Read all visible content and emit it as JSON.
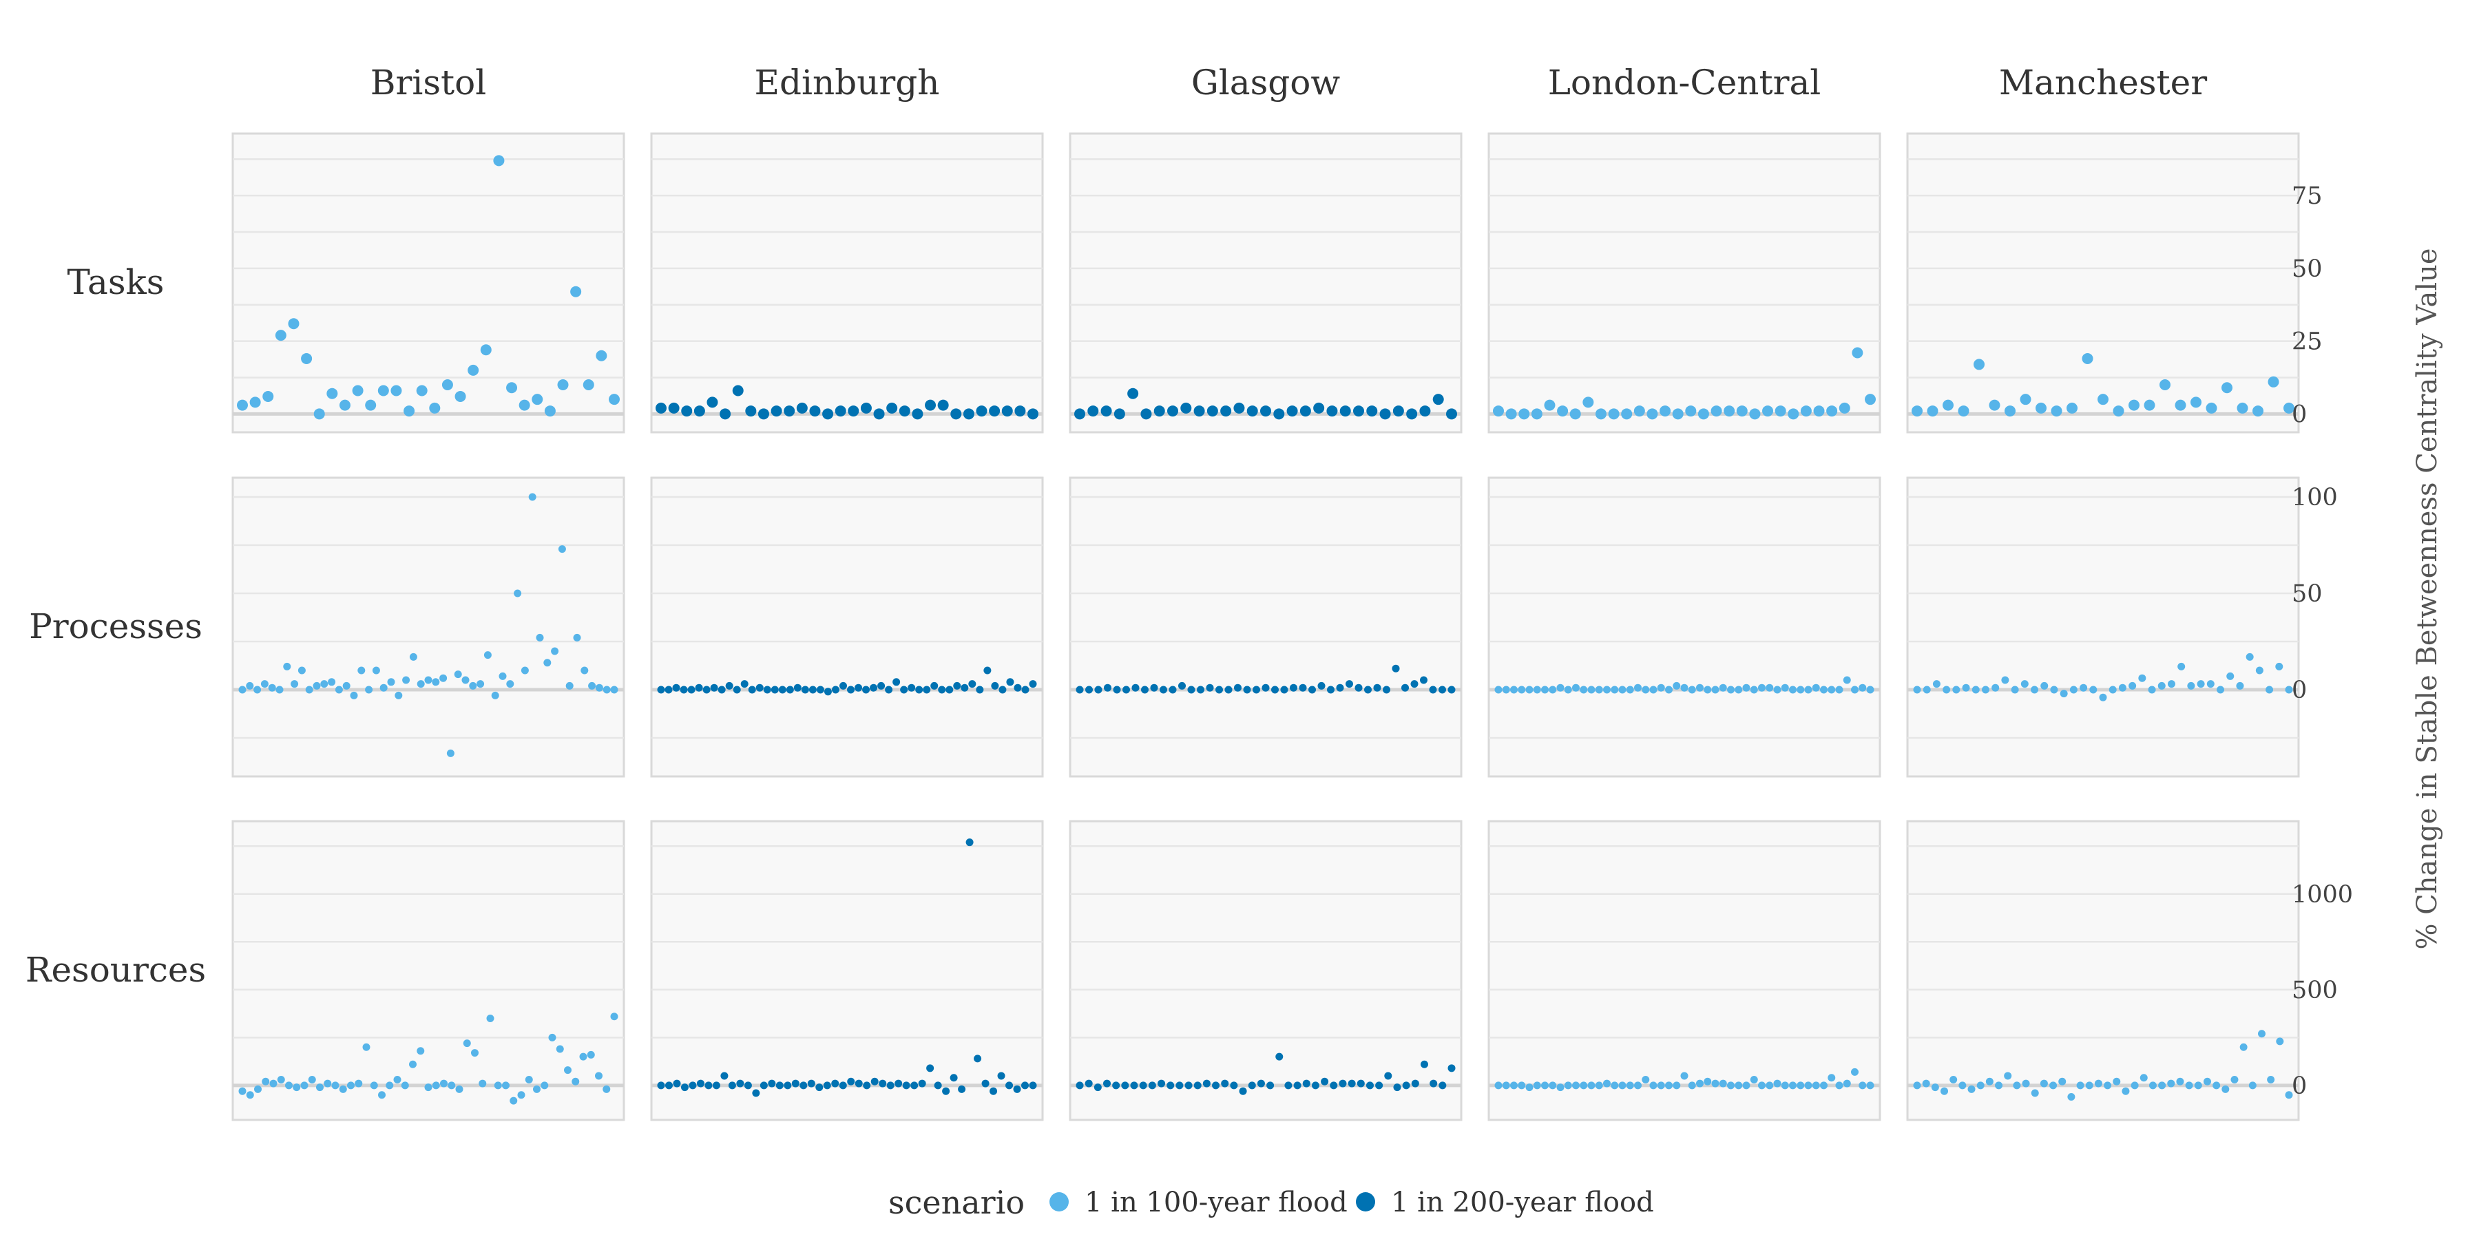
{
  "chart_data": {
    "type": "scatter",
    "facet_columns": [
      "Bristol",
      "Edinburgh",
      "Glasgow",
      "London-Central",
      "Manchester"
    ],
    "facet_rows": [
      "Tasks",
      "Processes",
      "Resources"
    ],
    "ylabel": "% Change in Stable Betweenness Centrality Value",
    "legend": {
      "title": "scenario",
      "position": "bottom",
      "entries": [
        {
          "name": "1 in 100-year flood",
          "color": "#56b4e9"
        },
        {
          "name": "1 in 200-year flood",
          "color": "#0072b2"
        }
      ]
    },
    "colors": {
      "1 in 100-year flood": "#56b4e9",
      "1 in 200-year flood": "#0072b2"
    },
    "city_scenario": {
      "Bristol": "1 in 100-year flood",
      "Edinburgh": "1 in 200-year flood",
      "Glasgow": "1 in 200-year flood",
      "London-Central": "1 in 100-year flood",
      "Manchester": "1 in 100-year flood"
    },
    "rows": {
      "Tasks": {
        "ylim": [
          -3,
          93
        ],
        "yticks": [
          "0",
          "25",
          "50",
          "75"
        ],
        "tick_values": [
          0,
          25,
          50,
          75
        ],
        "grid_values": [
          0,
          12.5,
          25,
          37.5,
          50,
          62.5,
          75,
          87.5
        ],
        "values": {
          "Bristol": [
            3,
            4,
            6,
            27,
            31,
            19,
            0,
            7,
            3,
            8,
            3,
            8,
            8,
            1,
            8,
            2,
            10,
            6,
            15,
            22,
            87,
            9,
            3,
            5,
            1,
            10,
            42,
            10,
            20,
            5
          ],
          "Edinburgh": [
            2,
            2,
            1,
            1,
            4,
            0,
            8,
            1,
            0,
            1,
            1,
            2,
            1,
            0,
            1,
            1,
            2,
            0,
            2,
            1,
            0,
            3,
            3,
            0,
            0,
            1,
            1,
            1,
            1,
            0
          ],
          "Glasgow": [
            0,
            1,
            1,
            0,
            7,
            0,
            1,
            1,
            2,
            1,
            1,
            1,
            2,
            1,
            1,
            0,
            1,
            1,
            2,
            1,
            1,
            1,
            1,
            0,
            1,
            0,
            1,
            5,
            0
          ],
          "London-Central": [
            1,
            0,
            0,
            0,
            3,
            1,
            0,
            4,
            0,
            0,
            0,
            1,
            0,
            1,
            0,
            1,
            0,
            1,
            1,
            1,
            0,
            1,
            1,
            0,
            1,
            1,
            1,
            2,
            21,
            5
          ],
          "Manchester": [
            1,
            1,
            3,
            1,
            17,
            3,
            1,
            5,
            2,
            1,
            2,
            19,
            5,
            1,
            3,
            3,
            10,
            3,
            4,
            2,
            9,
            2,
            1,
            11,
            2
          ]
        }
      },
      "Processes": {
        "ylim": [
          -40,
          105
        ],
        "yticks": [
          "0",
          "50",
          "100"
        ],
        "tick_values": [
          0,
          50,
          100
        ],
        "grid_values": [
          -25,
          0,
          25,
          50,
          75,
          100
        ],
        "values": {
          "Bristol": [
            0,
            2,
            0,
            3,
            1,
            0,
            12,
            3,
            10,
            0,
            2,
            3,
            4,
            0,
            2,
            -3,
            10,
            0,
            10,
            1,
            4,
            -3,
            5,
            17,
            3,
            5,
            4,
            6,
            -33,
            8,
            5,
            2,
            3,
            18,
            -3,
            7,
            3,
            50,
            10,
            100,
            27,
            14,
            20,
            73,
            2,
            27,
            10,
            2,
            1,
            0,
            0
          ],
          "Edinburgh": [
            0,
            0,
            1,
            0,
            0,
            1,
            0,
            1,
            0,
            2,
            0,
            3,
            0,
            1,
            0,
            0,
            0,
            0,
            1,
            0,
            0,
            0,
            -1,
            0,
            2,
            0,
            1,
            0,
            1,
            2,
            0,
            4,
            0,
            1,
            0,
            0,
            2,
            0,
            0,
            2,
            1,
            3,
            0,
            10,
            2,
            0,
            4,
            1,
            0,
            3
          ],
          "Glasgow": [
            0,
            0,
            0,
            1,
            0,
            0,
            1,
            0,
            1,
            0,
            0,
            2,
            0,
            0,
            1,
            0,
            0,
            1,
            0,
            0,
            1,
            0,
            0,
            1,
            1,
            0,
            2,
            0,
            1,
            3,
            1,
            0,
            1,
            0,
            11,
            1,
            3,
            5,
            0,
            0,
            0
          ],
          "London-Central": [
            0,
            0,
            0,
            0,
            0,
            0,
            0,
            0,
            1,
            0,
            1,
            0,
            0,
            0,
            0,
            0,
            0,
            0,
            1,
            0,
            0,
            1,
            0,
            2,
            1,
            0,
            1,
            0,
            0,
            1,
            0,
            0,
            1,
            0,
            1,
            1,
            0,
            1,
            0,
            0,
            0,
            1,
            0,
            0,
            0,
            5,
            0,
            1,
            0
          ],
          "Manchester": [
            0,
            0,
            3,
            0,
            0,
            1,
            0,
            0,
            1,
            5,
            0,
            3,
            0,
            2,
            0,
            -2,
            0,
            1,
            0,
            -4,
            0,
            1,
            2,
            6,
            0,
            2,
            3,
            12,
            2,
            3,
            3,
            0,
            7,
            2,
            17,
            10,
            0,
            12,
            0
          ]
        }
      },
      "Resources": {
        "ylim": [
          -130,
          1330
        ],
        "yticks": [
          "0",
          "500",
          "1000"
        ],
        "tick_values": [
          0,
          500,
          1000
        ],
        "grid_values": [
          -250,
          0,
          250,
          500,
          750,
          1000,
          1250
        ],
        "values": {
          "Bristol": [
            -30,
            -50,
            -20,
            20,
            10,
            30,
            0,
            -10,
            0,
            30,
            -10,
            10,
            0,
            -20,
            0,
            10,
            200,
            0,
            -50,
            0,
            30,
            0,
            110,
            180,
            -10,
            0,
            10,
            0,
            -20,
            220,
            170,
            10,
            350,
            0,
            0,
            -80,
            -50,
            30,
            -20,
            0,
            250,
            190,
            80,
            20,
            150,
            160,
            50,
            -20,
            360
          ],
          "Edinburgh": [
            0,
            0,
            10,
            -10,
            0,
            10,
            0,
            0,
            50,
            0,
            10,
            0,
            -40,
            0,
            10,
            0,
            0,
            10,
            0,
            10,
            -10,
            0,
            10,
            0,
            20,
            10,
            0,
            20,
            10,
            0,
            10,
            0,
            0,
            10,
            90,
            0,
            -30,
            40,
            -20,
            1270,
            140,
            10,
            -30,
            50,
            0,
            -20,
            0,
            0
          ],
          "Glasgow": [
            0,
            10,
            -10,
            10,
            0,
            0,
            0,
            0,
            0,
            10,
            0,
            0,
            0,
            0,
            10,
            0,
            10,
            0,
            -30,
            0,
            10,
            0,
            150,
            0,
            0,
            10,
            0,
            20,
            0,
            10,
            10,
            10,
            0,
            0,
            50,
            -10,
            0,
            10,
            110,
            10,
            0,
            90
          ],
          "London-Central": [
            0,
            0,
            0,
            0,
            -10,
            0,
            0,
            0,
            -10,
            0,
            0,
            0,
            0,
            0,
            10,
            0,
            0,
            0,
            0,
            30,
            0,
            0,
            0,
            0,
            50,
            0,
            10,
            20,
            10,
            10,
            0,
            0,
            0,
            30,
            0,
            0,
            10,
            0,
            0,
            0,
            0,
            0,
            0,
            40,
            0,
            10,
            70,
            0,
            0
          ],
          "Manchester": [
            0,
            10,
            -10,
            -30,
            30,
            0,
            -20,
            0,
            20,
            0,
            50,
            0,
            10,
            -40,
            10,
            0,
            20,
            -60,
            0,
            0,
            10,
            0,
            20,
            -30,
            0,
            40,
            0,
            0,
            10,
            20,
            0,
            0,
            20,
            0,
            -20,
            30,
            200,
            0,
            270,
            30,
            230,
            -50
          ]
        }
      }
    }
  }
}
